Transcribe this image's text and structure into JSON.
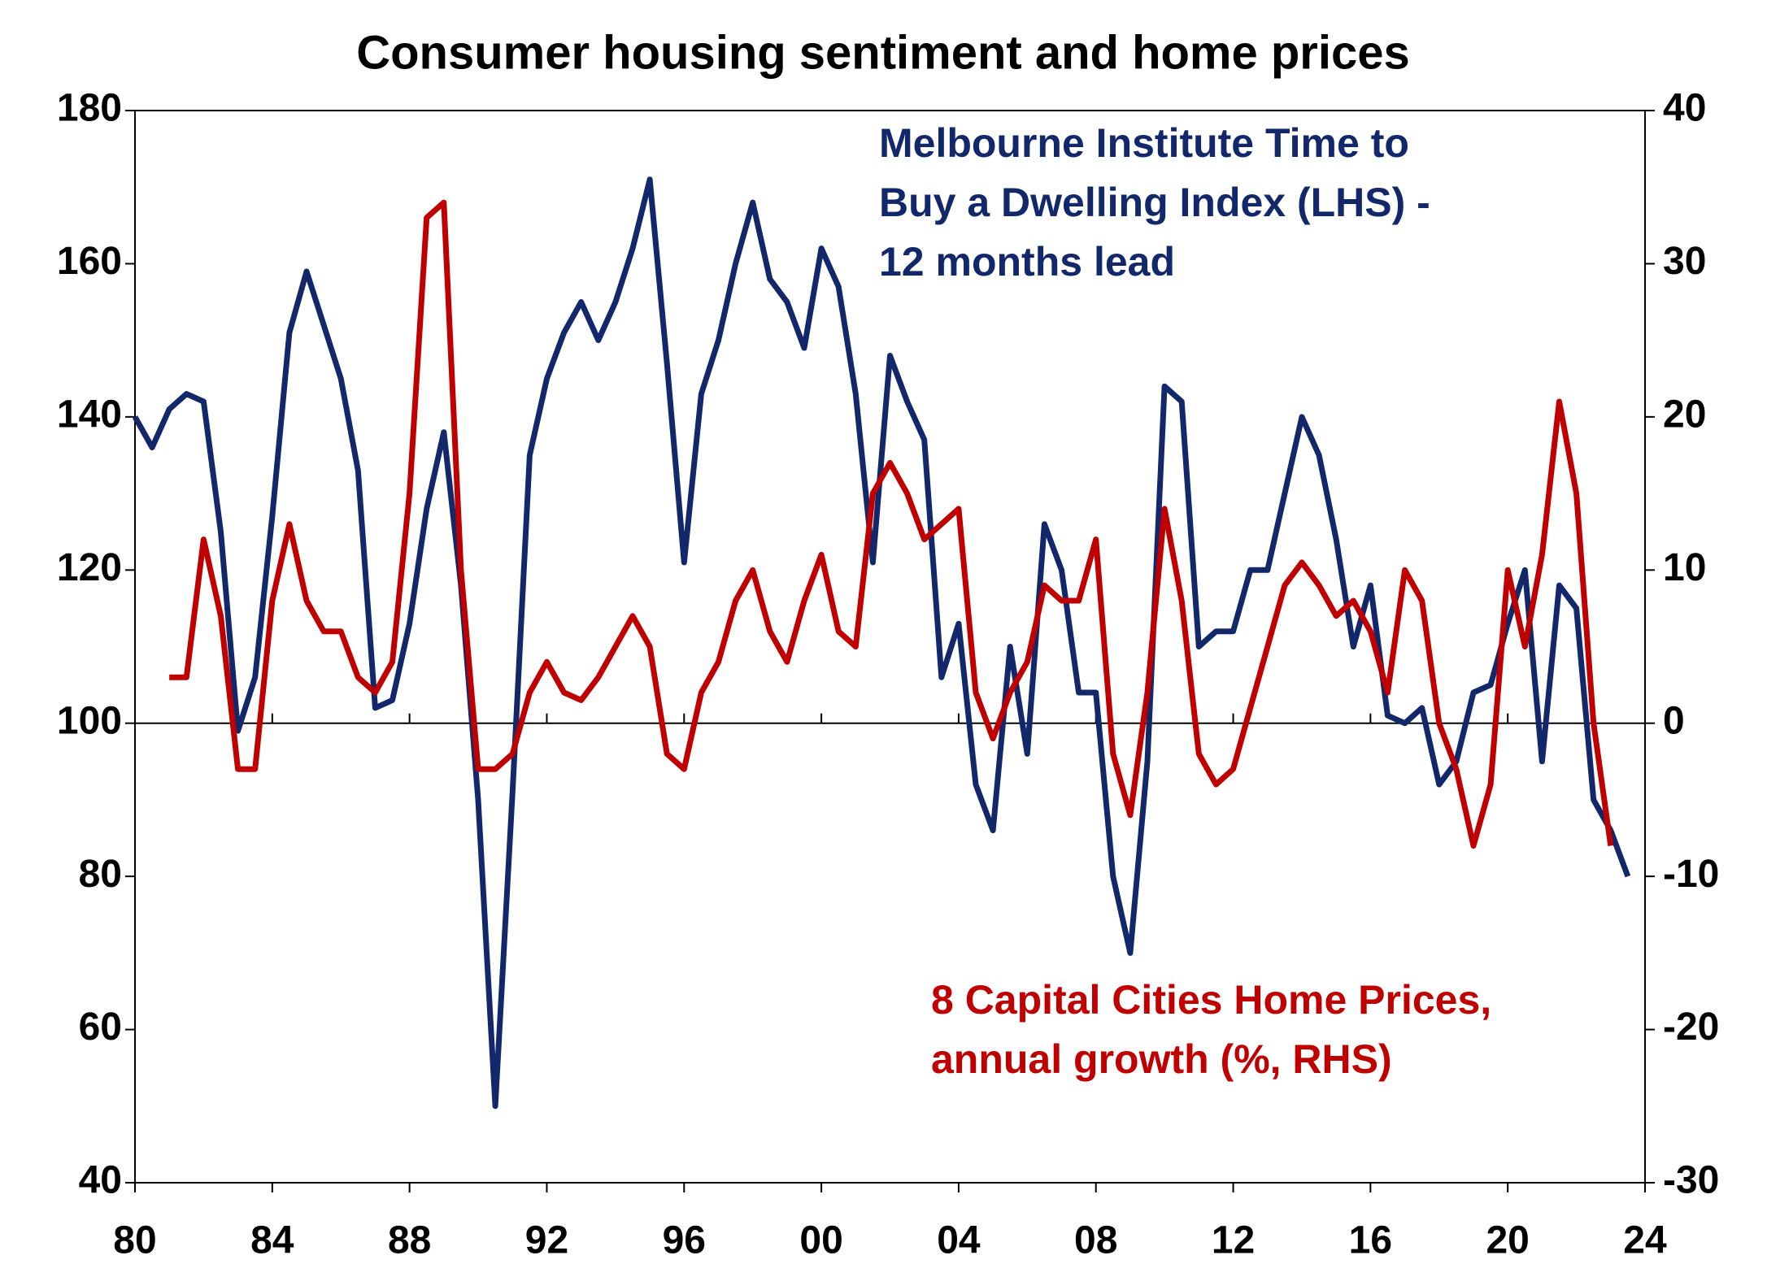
{
  "chart_data": {
    "type": "line",
    "title": "Consumer housing sentiment and home prices",
    "x": [
      1980,
      1980.5,
      1981,
      1981.5,
      1982,
      1982.5,
      1983,
      1983.5,
      1984,
      1984.5,
      1985,
      1985.5,
      1986,
      1986.5,
      1987,
      1987.5,
      1988,
      1988.5,
      1989,
      1989.5,
      1990,
      1990.5,
      1991,
      1991.5,
      1992,
      1992.5,
      1993,
      1993.5,
      1994,
      1994.5,
      1995,
      1995.5,
      1996,
      1996.5,
      1997,
      1997.5,
      1998,
      1998.5,
      1999,
      1999.5,
      2000,
      2000.5,
      2001,
      2001.5,
      2002,
      2002.5,
      2003,
      2003.5,
      2004,
      2004.5,
      2005,
      2005.5,
      2006,
      2006.5,
      2007,
      2007.5,
      2008,
      2008.5,
      2009,
      2009.5,
      2010,
      2010.5,
      2011,
      2011.5,
      2012,
      2012.5,
      2013,
      2013.5,
      2014,
      2014.5,
      2015,
      2015.5,
      2016,
      2016.5,
      2017,
      2017.5,
      2018,
      2018.5,
      2019,
      2019.5,
      2020,
      2020.5,
      2021,
      2021.5,
      2022,
      2022.5,
      2023,
      2023.5
    ],
    "series": [
      {
        "label_lines": [
          "Melbourne Institute Time to",
          "Buy a Dwelling Index (LHS) -",
          "12 months lead"
        ],
        "color": "#13286b",
        "axis": "y",
        "values": [
          140,
          136,
          141,
          143,
          142,
          125,
          99,
          106,
          127,
          151,
          159,
          152,
          145,
          133,
          102,
          103,
          113,
          128,
          138,
          118,
          90,
          50,
          91,
          135,
          145,
          151,
          155,
          150,
          155,
          162,
          171,
          147,
          121,
          143,
          150,
          160,
          168,
          158,
          155,
          149,
          162,
          157,
          143,
          121,
          148,
          142,
          137,
          106,
          113,
          92,
          86,
          110,
          96,
          126,
          120,
          104,
          104,
          80,
          70,
          95,
          144,
          142,
          110,
          112,
          112,
          120,
          120,
          130,
          140,
          135,
          124,
          110,
          118,
          101,
          100,
          102,
          92,
          95,
          104,
          105,
          113,
          120,
          95,
          118,
          115,
          90,
          86,
          80
        ]
      },
      {
        "label_lines": [
          "8 Capital Cities Home Prices,",
          "annual growth (%, RHS)"
        ],
        "color": "#c00000",
        "axis": "y2",
        "values": [
          null,
          null,
          3,
          3,
          12,
          7,
          -3,
          -3,
          8,
          13,
          8,
          6,
          6,
          3,
          2,
          4,
          15,
          33,
          34,
          10,
          -3,
          -3,
          -2,
          2,
          4,
          2,
          1.5,
          3,
          5,
          7,
          5,
          -2,
          -3,
          2,
          4,
          8,
          10,
          6,
          4,
          8,
          11,
          6,
          5,
          15,
          17,
          15,
          12,
          13,
          14,
          2,
          -1,
          2,
          4,
          9,
          8,
          8,
          12,
          -2,
          -6,
          2,
          14,
          8,
          -2,
          -4,
          -3,
          1,
          5,
          9,
          10.5,
          9,
          7,
          8,
          6,
          2,
          10,
          8,
          0,
          -3,
          -8,
          -4,
          10,
          5,
          11,
          21,
          15,
          0,
          -8,
          null
        ]
      }
    ],
    "xlim": [
      1980,
      2024
    ],
    "xticks": [
      {
        "value": 1980,
        "label": "80"
      },
      {
        "value": 1984,
        "label": "84"
      },
      {
        "value": 1988,
        "label": "88"
      },
      {
        "value": 1992,
        "label": "92"
      },
      {
        "value": 1996,
        "label": "96"
      },
      {
        "value": 2000,
        "label": "00"
      },
      {
        "value": 2004,
        "label": "04"
      },
      {
        "value": 2008,
        "label": "08"
      },
      {
        "value": 2012,
        "label": "12"
      },
      {
        "value": 2016,
        "label": "16"
      },
      {
        "value": 2020,
        "label": "20"
      },
      {
        "value": 2024,
        "label": "24"
      }
    ],
    "ylim": [
      40,
      180
    ],
    "yticks": [
      40,
      60,
      80,
      100,
      120,
      140,
      160,
      180
    ],
    "y2lim": [
      -30,
      40
    ],
    "y2ticks": [
      -30,
      -20,
      -10,
      0,
      10,
      20,
      30,
      40
    ]
  }
}
